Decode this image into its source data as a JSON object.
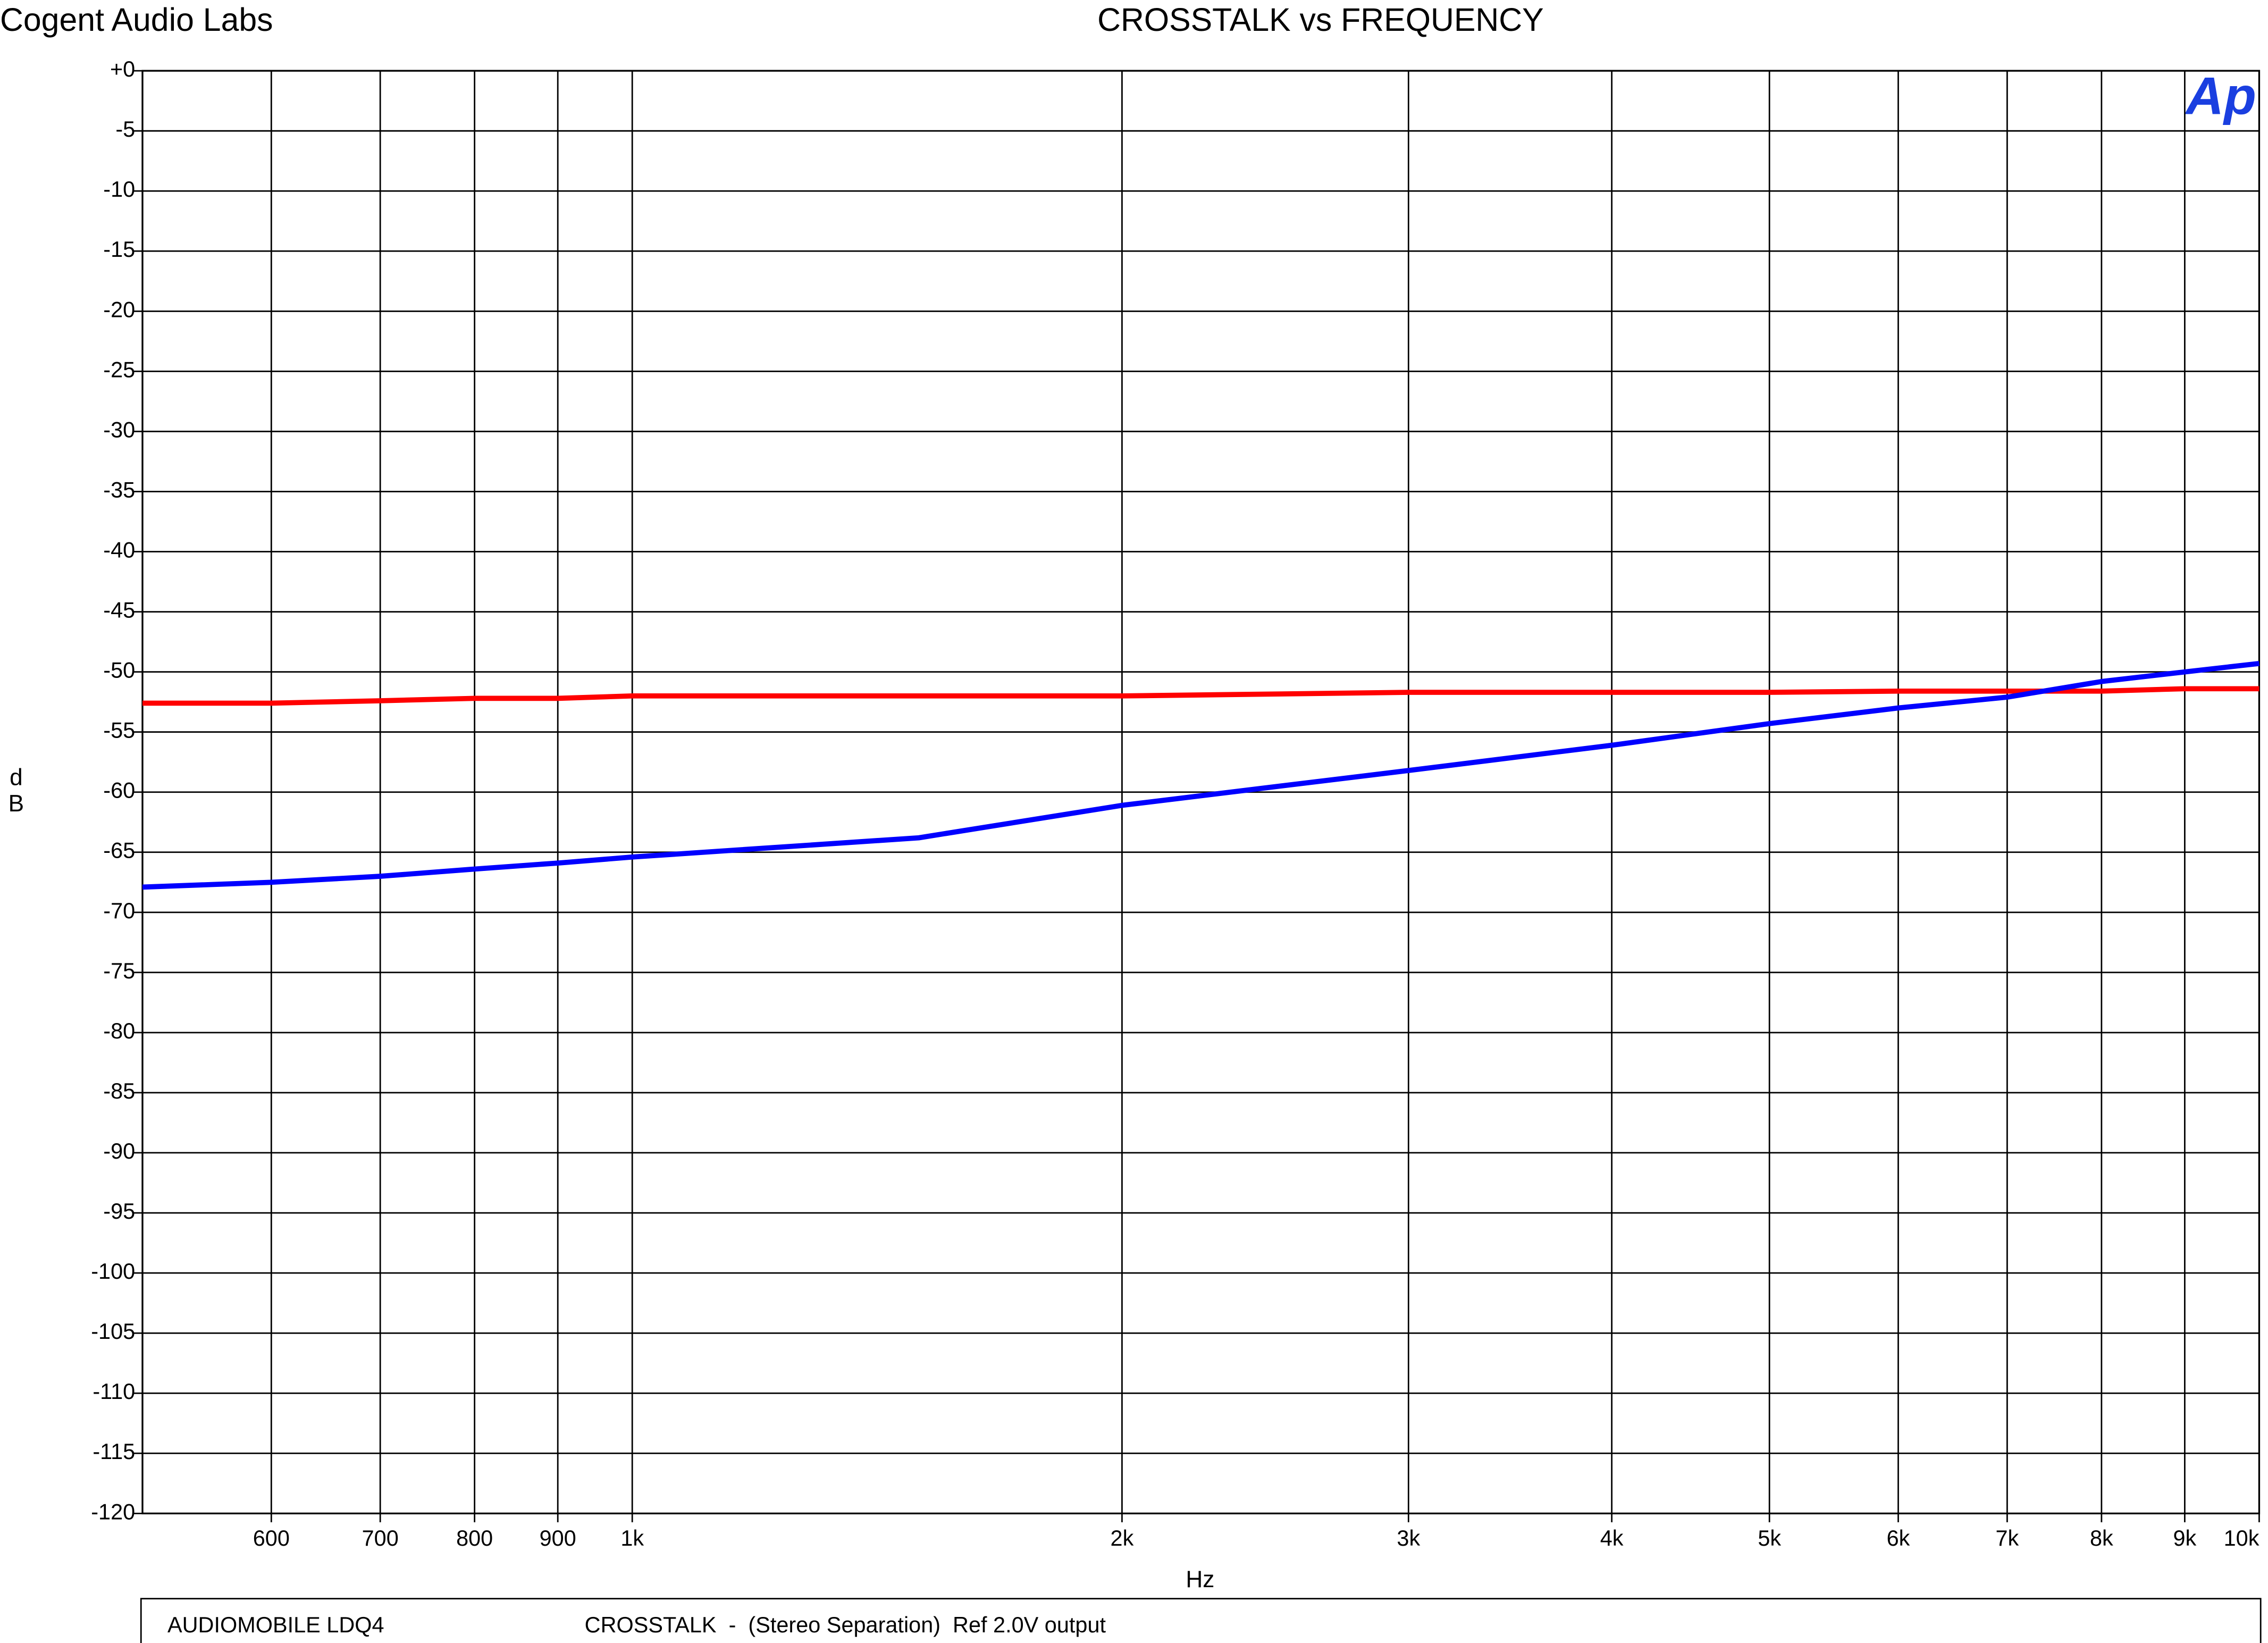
{
  "header": {
    "company": "Cogent Audio Labs",
    "logo": "Ap"
  },
  "chart_data": {
    "type": "line",
    "title": "CROSSTALK vs FREQUENCY",
    "x_label": "Hz",
    "y_label": "dB",
    "xscale": "log",
    "grid": true,
    "xlim": [
      500,
      10000
    ],
    "ylim": [
      -120,
      0
    ],
    "xticks": [
      600,
      700,
      800,
      900,
      {
        "value": 1000,
        "label": "1k"
      },
      {
        "value": 2000,
        "label": "2k"
      },
      {
        "value": 3000,
        "label": "3k"
      },
      {
        "value": 4000,
        "label": "4k"
      },
      {
        "value": 5000,
        "label": "5k"
      },
      {
        "value": 6000,
        "label": "6k"
      },
      {
        "value": 7000,
        "label": "7k"
      },
      {
        "value": 8000,
        "label": "8k"
      },
      {
        "value": 9000,
        "label": "9k"
      },
      {
        "value": 10000,
        "label": "10k"
      }
    ],
    "yticks": [
      {
        "value": 0,
        "label": "+0"
      },
      -5,
      -10,
      -15,
      -20,
      -25,
      -30,
      -35,
      -40,
      -45,
      -50,
      -55,
      -60,
      -65,
      -70,
      -75,
      -80,
      -85,
      -90,
      -95,
      -100,
      -105,
      -110,
      -115,
      -120
    ],
    "x": [
      500,
      600,
      700,
      800,
      900,
      1000,
      1500,
      2000,
      3000,
      4000,
      5000,
      6000,
      7000,
      8000,
      9000,
      10000
    ],
    "series": [
      {
        "color": "#ff0000",
        "values": [
          -52.6,
          -52.6,
          -52.4,
          -52.2,
          -52.2,
          -52.0,
          -52.0,
          -52.0,
          -51.7,
          -51.7,
          -51.7,
          -51.6,
          -51.6,
          -51.6,
          -51.4,
          -51.4
        ]
      },
      {
        "color": "#0000ff",
        "values": [
          -67.9,
          -67.5,
          -67.0,
          -66.4,
          -65.9,
          -65.4,
          -63.8,
          -61.1,
          -58.2,
          -56.1,
          -54.3,
          -53.0,
          -52.1,
          -50.8,
          -50.0,
          -49.3
        ]
      }
    ]
  },
  "footer": {
    "device": "AUDIOMOBILE LDQ4",
    "description": "CROSSTALK  -  (Stereo Separation)  Ref 2.0V output"
  }
}
